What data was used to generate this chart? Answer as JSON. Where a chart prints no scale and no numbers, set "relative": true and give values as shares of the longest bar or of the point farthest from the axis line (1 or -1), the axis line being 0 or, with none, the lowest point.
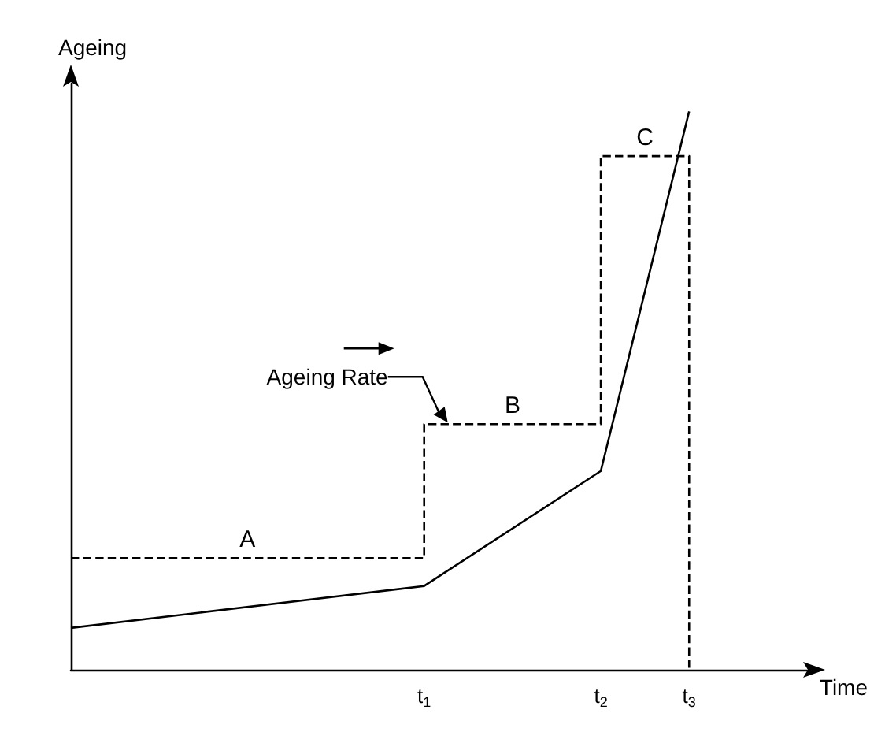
{
  "chart_data": {
    "type": "line",
    "relative": true,
    "xlabel": "Time",
    "ylabel": "Ageing",
    "categories": [
      null,
      null,
      null,
      null,
      null,
      null,
      null,
      null,
      null,
      null,
      null,
      null,
      "t$_{1}$",
      null,
      null,
      null,
      null,
      null,
      "t$_{2}$",
      null,
      null,
      "t$_{3}$",
      null,
      null,
      null,
      null
    ],
    "tick_labels": "x",
    "grid": false,
    "marker": "none",
    "series": [
      {
        "type": "line",
        "color": "#000000",
        "line_style": "solid",
        "values": [
          0.075,
          null,
          null,
          null,
          null,
          null,
          null,
          null,
          null,
          null,
          null,
          null,
          0.15,
          null,
          null,
          null,
          null,
          null,
          0.356,
          null,
          null,
          1,
          null,
          null,
          null,
          null
        ]
      },
      {
        "type": "step",
        "color": "#000000",
        "line_style": "dashed",
        "values": [
          0.2,
          null,
          null,
          null,
          null,
          null,
          null,
          null,
          null,
          null,
          null,
          null,
          0.44,
          null,
          null,
          null,
          null,
          null,
          0.92,
          null,
          null,
          0,
          null,
          null,
          null,
          null
        ]
      }
    ],
    "annotations": [
      {
        "text": "A",
        "y": 0.2
      },
      {
        "text": "B",
        "y": 0.44
      },
      {
        "text": "C",
        "y": 0.92
      },
      "Ageing Rate"
    ]
  }
}
